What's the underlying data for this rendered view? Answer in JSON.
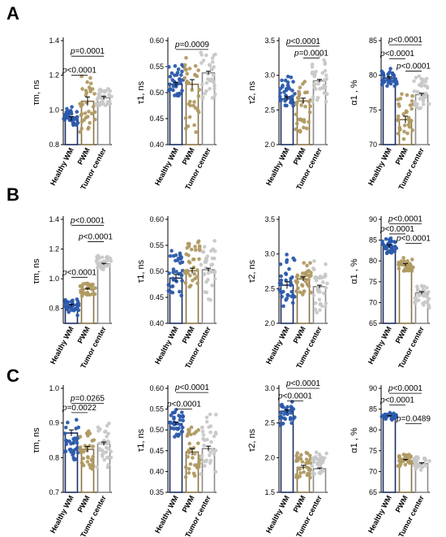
{
  "panel_letters": [
    "A",
    "B",
    "C"
  ],
  "colors": {
    "healthy": "#2b5aab",
    "pwm": "#b09a62",
    "tumor": "#c8c8c8",
    "healthy_bar": "#1c2f63",
    "pwm_bar": "#8a7444",
    "tumor_bar": "#8c8c8c"
  },
  "chart_data": [
    {
      "type": "bar",
      "panel": "A",
      "ylabel": "τm, ns",
      "categories": [
        "Healthy WM",
        "PWM",
        "Tumor center"
      ],
      "values": [
        0.95,
        1.05,
        1.07
      ],
      "errors": [
        0.012,
        0.025,
        0.008
      ],
      "point_spread": [
        [
          0.89,
          1.02
        ],
        [
          0.84,
          1.2
        ],
        [
          1.0,
          1.14
        ]
      ],
      "ylim": [
        0.8,
        1.4
      ],
      "yticks": [
        0.8,
        1.0,
        1.2,
        1.4
      ],
      "ytick_labels": [
        "0.8",
        "1.0",
        "1.2",
        "1.4"
      ],
      "annotations": [
        {
          "from": 0,
          "to": 2,
          "label": "p=0.0001",
          "y": 1.31
        },
        {
          "from": 0,
          "to": 1,
          "label": "p<0.0001",
          "y": 1.2
        }
      ]
    },
    {
      "type": "bar",
      "panel": "A",
      "ylabel": "τ1, ns",
      "categories": [
        "Healthy WM",
        "PWM",
        "Tumor center"
      ],
      "values": [
        0.516,
        0.516,
        0.538
      ],
      "errors": [
        0.004,
        0.009,
        0.003
      ],
      "point_spread": [
        [
          0.48,
          0.56
        ],
        [
          0.41,
          0.59
        ],
        [
          0.48,
          0.59
        ]
      ],
      "ylim": [
        0.4,
        0.6
      ],
      "yticks": [
        0.4,
        0.45,
        0.5,
        0.55,
        0.6
      ],
      "ytick_labels": [
        "0.40",
        "0.45",
        "0.50",
        "0.55",
        "0.60"
      ],
      "annotations": [
        {
          "from": 0,
          "to": 2,
          "label": "p=0.0009",
          "y": 0.583
        }
      ]
    },
    {
      "type": "bar",
      "panel": "A",
      "ylabel": "τ2, ns",
      "categories": [
        "Healthy WM",
        "PWM",
        "Tumor center"
      ],
      "values": [
        2.66,
        2.63,
        2.92
      ],
      "errors": [
        0.03,
        0.04,
        0.02
      ],
      "point_spread": [
        [
          2.5,
          3.0
        ],
        [
          2.05,
          2.95
        ],
        [
          2.55,
          3.3
        ]
      ],
      "ylim": [
        2.0,
        3.5
      ],
      "yticks": [
        2.0,
        2.5,
        3.0,
        3.5
      ],
      "ytick_labels": [
        "2.0",
        "2.5",
        "3.0",
        "3.5"
      ],
      "annotations": [
        {
          "from": 0,
          "to": 2,
          "label": "p<0.0001",
          "y": 3.42
        },
        {
          "from": 1,
          "to": 2,
          "label": "p=0.0001",
          "y": 3.25
        }
      ]
    },
    {
      "type": "bar",
      "panel": "A",
      "ylabel": "α1 , %",
      "categories": [
        "Healthy WM",
        "PWM",
        "Tumor center"
      ],
      "values": [
        79.6,
        73.6,
        77.2
      ],
      "errors": [
        0.2,
        0.5,
        0.2
      ],
      "point_spread": [
        [
          78.3,
          81.0
        ],
        [
          70.5,
          78.0
        ],
        [
          74.5,
          80.5
        ]
      ],
      "ylim": [
        70,
        85
      ],
      "yticks": [
        70,
        75,
        80,
        85
      ],
      "ytick_labels": [
        "70",
        "75",
        "80",
        "85"
      ],
      "annotations": [
        {
          "from": 0,
          "to": 2,
          "label": "p<0.0001",
          "y": 84.4
        },
        {
          "from": 0,
          "to": 1,
          "label": "p<0.0001",
          "y": 82.4
        },
        {
          "from": 1,
          "to": 2,
          "label": "p<0.0001",
          "y": 80.6
        }
      ]
    },
    {
      "type": "bar",
      "panel": "B",
      "ylabel": "τm, ns",
      "categories": [
        "Healthy WM",
        "PWM",
        "Tumor center"
      ],
      "values": [
        0.82,
        0.93,
        1.1
      ],
      "errors": [
        0.008,
        0.006,
        0.004
      ],
      "point_spread": [
        [
          0.75,
          0.87
        ],
        [
          0.88,
          0.98
        ],
        [
          1.05,
          1.18
        ]
      ],
      "ylim": [
        0.7,
        1.4
      ],
      "yticks": [
        0.8,
        1.0,
        1.2,
        1.4
      ],
      "ytick_labels": [
        "0.8",
        "1.0",
        "1.2",
        "1.4"
      ],
      "annotations": [
        {
          "from": 0,
          "to": 2,
          "label": "p<0.0001",
          "y": 1.36
        },
        {
          "from": 1,
          "to": 2,
          "label": "p<0.0001",
          "y": 1.25
        },
        {
          "from": 0,
          "to": 1,
          "label": "p<0.0001",
          "y": 1.01
        }
      ]
    },
    {
      "type": "bar",
      "panel": "B",
      "ylabel": "τ1, ns",
      "categories": [
        "Healthy WM",
        "PWM",
        "Tumor center"
      ],
      "values": [
        0.487,
        0.501,
        0.503
      ],
      "errors": [
        0.007,
        0.005,
        0.003
      ],
      "point_spread": [
        [
          0.45,
          0.555
        ],
        [
          0.455,
          0.57
        ],
        [
          0.44,
          0.565
        ]
      ],
      "ylim": [
        0.4,
        0.6
      ],
      "yticks": [
        0.4,
        0.45,
        0.5,
        0.55,
        0.6
      ],
      "ytick_labels": [
        "0.40",
        "0.45",
        "0.50",
        "0.55",
        "0.60"
      ],
      "annotations": []
    },
    {
      "type": "bar",
      "panel": "B",
      "ylabel": "τ2, ns",
      "categories": [
        "Healthy WM",
        "PWM",
        "Tumor center"
      ],
      "values": [
        2.55,
        2.64,
        2.53
      ],
      "errors": [
        0.05,
        0.03,
        0.02
      ],
      "point_spread": [
        [
          2.2,
          3.0
        ],
        [
          2.35,
          2.9
        ],
        [
          2.1,
          2.95
        ]
      ],
      "ylim": [
        2.0,
        3.5
      ],
      "yticks": [
        2.0,
        2.5,
        3.0,
        3.5
      ],
      "ytick_labels": [
        "2.0",
        "2.5",
        "3.0",
        "3.5"
      ],
      "annotations": []
    },
    {
      "type": "bar",
      "panel": "B",
      "ylabel": "α1 , %",
      "categories": [
        "Healthy WM",
        "PWM",
        "Tumor center"
      ],
      "values": [
        83.5,
        79.1,
        72.3
      ],
      "errors": [
        0.4,
        0.3,
        0.3
      ],
      "point_spread": [
        [
          81.5,
          86.0
        ],
        [
          77.0,
          81.0
        ],
        [
          68.5,
          75.0
        ]
      ],
      "ylim": [
        65,
        90
      ],
      "yticks": [
        65,
        70,
        75,
        80,
        85,
        90
      ],
      "ytick_labels": [
        "65",
        "70",
        "75",
        "80",
        "85",
        "90"
      ],
      "annotations": [
        {
          "from": 0,
          "to": 2,
          "label": "p<0.0001",
          "y": 88.9
        },
        {
          "from": 0,
          "to": 1,
          "label": "p<0.0001",
          "y": 86.5
        },
        {
          "from": 1,
          "to": 2,
          "label": "p<0.0001",
          "y": 84.2
        }
      ]
    },
    {
      "type": "bar",
      "panel": "C",
      "ylabel": "τm, ns",
      "categories": [
        "Healthy WM",
        "PWM",
        "Tumor center"
      ],
      "values": [
        0.871,
        0.824,
        0.84
      ],
      "errors": [
        0.009,
        0.008,
        0.005
      ],
      "point_spread": [
        [
          0.77,
          0.935
        ],
        [
          0.76,
          0.895
        ],
        [
          0.76,
          0.91
        ]
      ],
      "ylim": [
        0.7,
        1.0
      ],
      "yticks": [
        0.7,
        0.8,
        0.9,
        1.0
      ],
      "ytick_labels": [
        "0.7",
        "0.8",
        "0.9",
        "1.0"
      ],
      "annotations": [
        {
          "from": 0,
          "to": 2,
          "label": "p=0.0265",
          "y": 0.957
        },
        {
          "from": 0,
          "to": 1,
          "label": "p=0.0022",
          "y": 0.93
        }
      ]
    },
    {
      "type": "bar",
      "panel": "C",
      "ylabel": "τ1, ns",
      "categories": [
        "Healthy WM",
        "PWM",
        "Tumor center"
      ],
      "values": [
        0.515,
        0.447,
        0.455
      ],
      "errors": [
        0.004,
        0.008,
        0.006
      ],
      "point_spread": [
        [
          0.48,
          0.565
        ],
        [
          0.375,
          0.51
        ],
        [
          0.385,
          0.55
        ]
      ],
      "ylim": [
        0.35,
        0.6
      ],
      "yticks": [
        0.35,
        0.4,
        0.45,
        0.5,
        0.55,
        0.6
      ],
      "ytick_labels": [
        "0.35",
        "0.40",
        "0.45",
        "0.50",
        "0.55",
        "0.60"
      ],
      "annotations": [
        {
          "from": 0,
          "to": 2,
          "label": "p<0.0001",
          "y": 0.59
        },
        {
          "from": 0,
          "to": 1,
          "label": "p<0.0001",
          "y": 0.55
        }
      ]
    },
    {
      "type": "bar",
      "panel": "C",
      "ylabel": "τ2, ns",
      "categories": [
        "Healthy WM",
        "PWM",
        "Tumor center"
      ],
      "values": [
        2.67,
        1.86,
        1.84
      ],
      "errors": [
        0.02,
        0.03,
        0.01
      ],
      "point_spread": [
        [
          2.45,
          2.85
        ],
        [
          1.65,
          2.12
        ],
        [
          1.72,
          2.1
        ]
      ],
      "ylim": [
        1.5,
        3.0
      ],
      "yticks": [
        1.5,
        2.0,
        2.5,
        3.0
      ],
      "ytick_labels": [
        "1.5",
        "2.0",
        "2.5",
        "3.0"
      ],
      "annotations": [
        {
          "from": 0,
          "to": 2,
          "label": "p<0.0001",
          "y": 3.0
        },
        {
          "from": 0,
          "to": 1,
          "label": "p<0.0001",
          "y": 2.82
        }
      ]
    },
    {
      "type": "bar",
      "panel": "C",
      "ylabel": "α1 , %",
      "categories": [
        "Healthy WM",
        "PWM",
        "Tumor center"
      ],
      "values": [
        83.3,
        72.7,
        71.9
      ],
      "errors": [
        0.1,
        0.2,
        0.2
      ],
      "point_spread": [
        [
          82.3,
          84.3
        ],
        [
          71.2,
          74.5
        ],
        [
          70.3,
          74.0
        ]
      ],
      "ylim": [
        65,
        90
      ],
      "yticks": [
        65,
        70,
        75,
        80,
        85,
        90
      ],
      "ytick_labels": [
        "65",
        "70",
        "75",
        "80",
        "85",
        "90"
      ],
      "annotations": [
        {
          "from": 0,
          "to": 2,
          "label": "p<0.0001",
          "y": 88.8
        },
        {
          "from": 0,
          "to": 1,
          "label": "p<0.0001",
          "y": 86.0
        },
        {
          "from": 1,
          "to": 2,
          "label": "p=0.0489",
          "y": 81.5
        }
      ]
    }
  ]
}
